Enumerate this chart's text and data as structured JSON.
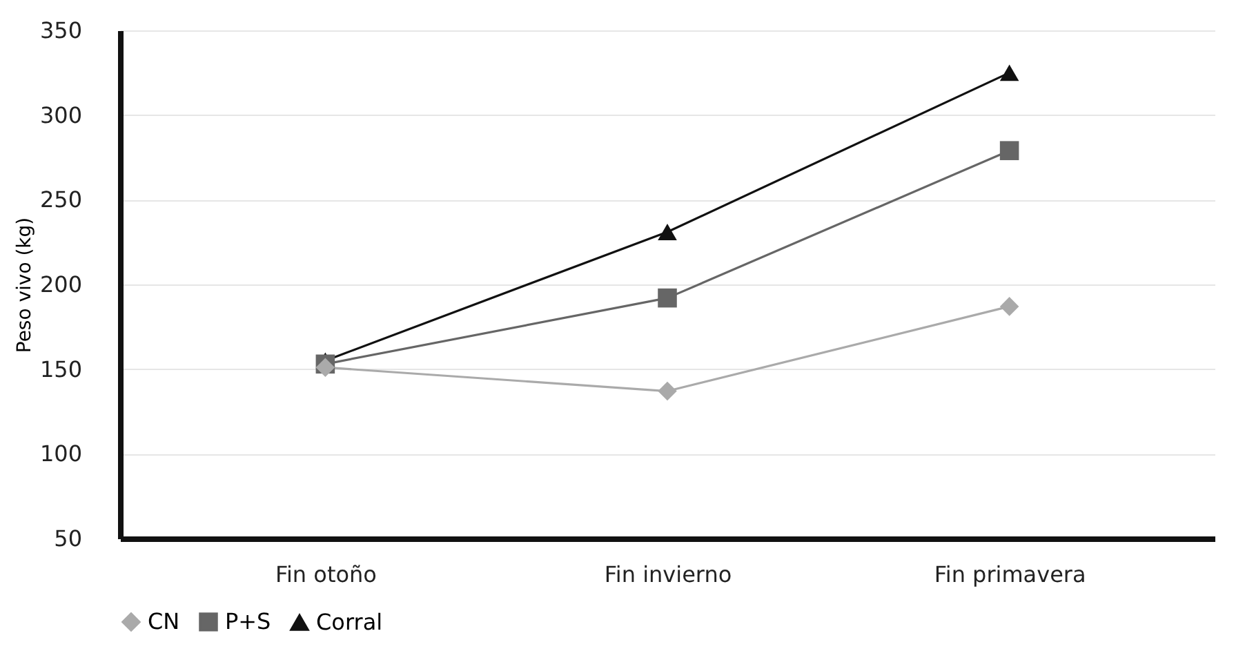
{
  "chart_data": {
    "type": "line",
    "ylabel": "Peso vivo (kg)",
    "categories": [
      "Fin otoño",
      "Fin invierno",
      "Fin primavera"
    ],
    "series": [
      {
        "name": "CN",
        "color": "#aaaaaa",
        "marker": "diamond",
        "values": [
          151,
          137,
          187
        ]
      },
      {
        "name": "P+S",
        "color": "#666666",
        "marker": "square",
        "values": [
          153,
          192,
          279
        ]
      },
      {
        "name": "Corral",
        "color": "#111111",
        "marker": "triangle",
        "values": [
          155,
          231,
          325
        ]
      }
    ],
    "ylim": [
      50,
      350
    ],
    "yticks": [
      50,
      100,
      150,
      200,
      250,
      300,
      350
    ],
    "grid": "y",
    "legend": "bottom",
    "line_style": "solid"
  }
}
